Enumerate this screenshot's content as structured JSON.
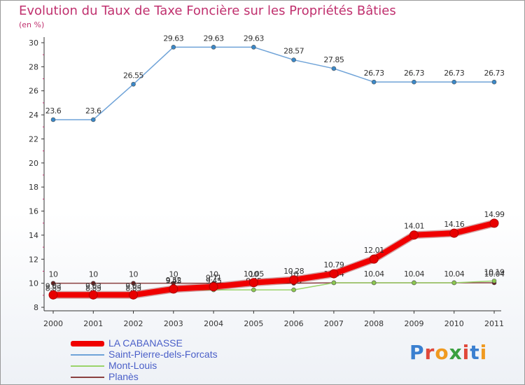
{
  "title": "Evolution du Taux de Taxe Foncière sur les Propriétés Bâties",
  "subtitle": "(en %)",
  "logo": {
    "text": "Proxiti",
    "colors": [
      "#3a7fd0",
      "#e0483a",
      "#f09a20",
      "#3aa040",
      "#e0483a",
      "#3a7fd0",
      "#f09a20"
    ]
  },
  "chart_data": {
    "type": "line",
    "x": [
      "2000",
      "2001",
      "2002",
      "2003",
      "2004",
      "2005",
      "2006",
      "2007",
      "2008",
      "2009",
      "2010",
      "2011"
    ],
    "ylim": [
      8,
      30
    ],
    "yticks": [
      "8",
      "10",
      "12",
      "14",
      "16",
      "18",
      "20",
      "22",
      "24",
      "26",
      "28",
      "30"
    ],
    "grid": false,
    "legend_position": "bottom-left",
    "series": [
      {
        "name": "Saint-Pierre-dels-Forcats",
        "color": "#6fa3d8",
        "marker": "#3a88c8",
        "values": [
          23.6,
          23.6,
          26.55,
          29.63,
          29.63,
          29.63,
          28.57,
          27.85,
          26.73,
          26.73,
          26.73,
          26.73
        ],
        "labels": [
          "23.6",
          "23.6",
          "26.55",
          "29.63",
          "29.63",
          "29.63",
          "28.57",
          "27.85",
          "26.73",
          "26.73",
          "26.73",
          "26.73"
        ]
      },
      {
        "name": "Planès",
        "color": "#8a4040",
        "marker": "#6a2020",
        "values": [
          10,
          10,
          10,
          10,
          10,
          10,
          10,
          10.04,
          10.04,
          10.04,
          10.04,
          10.04
        ],
        "labels": [
          "10",
          "10",
          "10",
          "10",
          "10",
          "10",
          "10",
          "10.04",
          "10.04",
          "10.04",
          "10.04",
          "10.04"
        ]
      },
      {
        "name": "Mont-Louis",
        "color": "#9ad46a",
        "marker": "#8cc850",
        "values": [
          8.85,
          8.85,
          8.85,
          9.45,
          9.45,
          9.45,
          9.45,
          10.04,
          10.04,
          10.04,
          10.04,
          10.19
        ],
        "labels": [
          "8.85",
          "8.85",
          "8.85",
          "9.45",
          "9.45",
          "9.45",
          "9.45",
          "",
          "",
          "",
          "",
          "10.19"
        ]
      },
      {
        "name": "LA CABANASSE",
        "color": "#f00000",
        "marker": "#e80000",
        "values": [
          9.03,
          9.03,
          9.03,
          9.52,
          9.71,
          10.05,
          10.28,
          10.79,
          12.01,
          14.01,
          14.16,
          14.99
        ],
        "labels": [
          "9.03",
          "9.03",
          "9.03",
          "9.52",
          "9.71",
          "10.05",
          "10.28",
          "10.79",
          "12.01",
          "14.01",
          "14.16",
          "14.99"
        ]
      }
    ],
    "legend": [
      "LA CABANASSE",
      "Saint-Pierre-dels-Forcats",
      "Mont-Louis",
      "Planès"
    ]
  }
}
